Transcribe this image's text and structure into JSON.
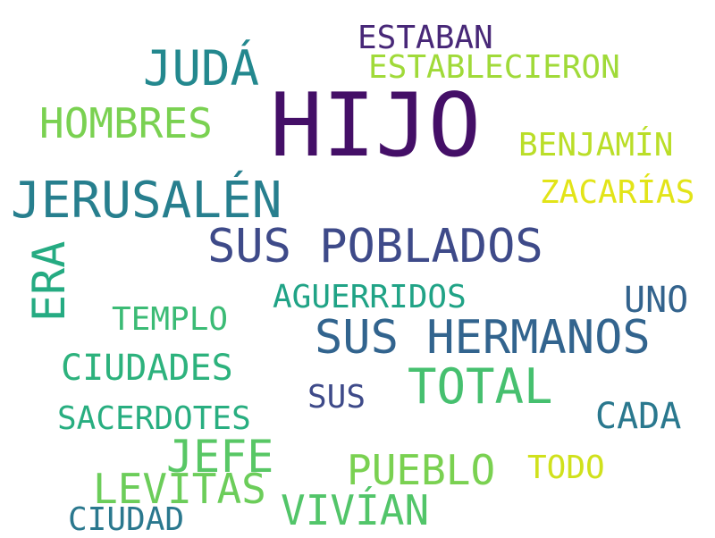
{
  "words": {
    "hijo": {
      "text": "HIJO",
      "color": "#440f67"
    },
    "sus_poblados": {
      "text": "SUS POBLADOS",
      "color": "#3e4a89"
    },
    "sus_hermanos": {
      "text": "SUS HERMANOS",
      "color": "#32648e"
    },
    "jerusalen": {
      "text": "JERUSALÉN",
      "color": "#277f8e"
    },
    "juda": {
      "text": "JUDÁ",
      "color": "#23888e"
    },
    "hombres": {
      "text": "HOMBRES",
      "color": "#7ad151"
    },
    "era": {
      "text": "ERA",
      "color": "#25ab82"
    },
    "total": {
      "text": "TOTAL",
      "color": "#46c06f"
    },
    "jefe": {
      "text": "JEFE",
      "color": "#58c765"
    },
    "levitas": {
      "text": "LEVITAS",
      "color": "#6ccd5a"
    },
    "vivian": {
      "text": "VIVÍAN",
      "color": "#52c569"
    },
    "pueblo": {
      "text": "PUEBLO",
      "color": "#7ad151"
    },
    "ciudades": {
      "text": "CIUDADES",
      "color": "#2db27d"
    },
    "sacerdotes": {
      "text": "SACERDOTES",
      "color": "#28ae80"
    },
    "templo": {
      "text": "TEMPLO",
      "color": "#3bbb75"
    },
    "aguerridos": {
      "text": "AGUERRIDOS",
      "color": "#20a386"
    },
    "uno": {
      "text": "UNO",
      "color": "#33638d"
    },
    "cada": {
      "text": "CADA",
      "color": "#2a788e"
    },
    "estaban": {
      "text": "ESTABAN",
      "color": "#482878"
    },
    "establecieron": {
      "text": "ESTABLECIERON",
      "color": "#a0da39"
    },
    "benjamin": {
      "text": "BENJAMÍN",
      "color": "#bade28"
    },
    "zacarias": {
      "text": "ZACARÍAS",
      "color": "#e2e418"
    },
    "sus": {
      "text": "SUS",
      "color": "#3e4a89"
    },
    "todo": {
      "text": "TODO",
      "color": "#d0e11c"
    },
    "ciudad": {
      "text": "CIUDAD",
      "color": "#2a788e"
    }
  }
}
